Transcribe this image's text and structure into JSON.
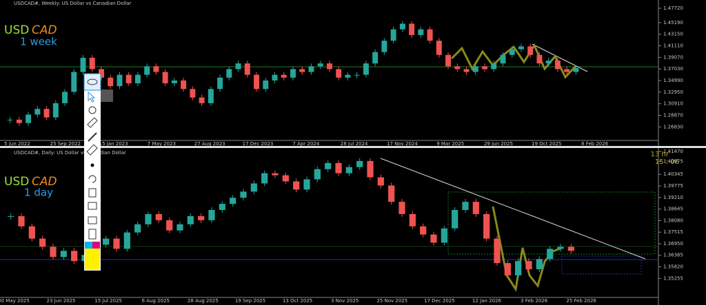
{
  "chart_data": [
    {
      "type": "candlestick",
      "title": "USDCAD#, Weekly: US Dollar vs Canadian Dollar",
      "symbol_a": "USD",
      "symbol_b": "CAD",
      "period": "1 week",
      "up_color": "#26a69a",
      "down_color": "#ef5350",
      "values": [
        1.281,
        1.275,
        1.29,
        1.3,
        1.285,
        1.31,
        1.33,
        1.365,
        1.39,
        1.37,
        1.355,
        1.34,
        1.36,
        1.345,
        1.36,
        1.375,
        1.365,
        1.345,
        1.35,
        1.335,
        1.32,
        1.31,
        1.335,
        1.355,
        1.37,
        1.38,
        1.36,
        1.335,
        1.35,
        1.36,
        1.355,
        1.37,
        1.365,
        1.375,
        1.38,
        1.37,
        1.355,
        1.36,
        1.36,
        1.38,
        1.4,
        1.42,
        1.44,
        1.45,
        1.43,
        1.44,
        1.42,
        1.395,
        1.375,
        1.37,
        1.365,
        1.375,
        1.37,
        1.38,
        1.395,
        1.405,
        1.41,
        1.395,
        1.38,
        1.385,
        1.37,
        1.365,
        1.372
      ],
      "ylim": [
        1.2444,
        1.482
      ],
      "yticks": [
        {
          "value": 1.4772,
          "label": "1.47720"
        },
        {
          "value": 1.4519,
          "label": "1.45190"
        },
        {
          "value": 1.4315,
          "label": "1.43150"
        },
        {
          "value": 1.4111,
          "label": "1.41110"
        },
        {
          "value": 1.3907,
          "label": "1.39070"
        },
        {
          "value": 1.3703,
          "label": "1.37030"
        },
        {
          "value": 1.3499,
          "label": "1.34990"
        },
        {
          "value": 1.3295,
          "label": "1.32950"
        },
        {
          "value": 1.3091,
          "label": "1.30910"
        },
        {
          "value": 1.2887,
          "label": "1.28870"
        },
        {
          "value": 1.2683,
          "label": "1.26830"
        }
      ],
      "x_labels": [
        "5 Jun 2022",
        "25 Sep 2022",
        "15 Jan 2023",
        "7 May 2023",
        "27 Aug 2023",
        "17 Dec 2023",
        "7 Apr 2024",
        "28 Jul 2024",
        "17 Nov 2024",
        "9 Mar 2025",
        "29 Jun 2025",
        "19 Oct 2025",
        "8 Feb 2026"
      ]
    },
    {
      "type": "candlestick",
      "title": "USDCAD#, Daily: US Dollar vs Canadian Dollar",
      "symbol_a": "USD",
      "symbol_b": "CAD",
      "period": "1 day",
      "timer_hours": "13 hr",
      "timer_clock": "15 : 06",
      "up_color": "#26a69a",
      "down_color": "#ef5350",
      "values": [
        1.383,
        1.378,
        1.372,
        1.368,
        1.363,
        1.366,
        1.361,
        1.364,
        1.369,
        1.372,
        1.367,
        1.375,
        1.379,
        1.384,
        1.381,
        1.376,
        1.379,
        1.383,
        1.381,
        1.386,
        1.389,
        1.392,
        1.395,
        1.399,
        1.404,
        1.403,
        1.4,
        1.396,
        1.401,
        1.406,
        1.409,
        1.404,
        1.407,
        1.41,
        1.402,
        1.398,
        1.39,
        1.384,
        1.378,
        1.374,
        1.37,
        1.377,
        1.386,
        1.39,
        1.384,
        1.372,
        1.36,
        1.354,
        1.361,
        1.357,
        1.362,
        1.367,
        1.368,
        1.366
      ],
      "ylim": [
        1.3432,
        1.416
      ],
      "yticks": [
        {
          "value": 1.4147,
          "label": "1.41470"
        },
        {
          "value": 1.40975,
          "label": "1.40975"
        },
        {
          "value": 1.40345,
          "label": "1.40345"
        },
        {
          "value": 1.39775,
          "label": "1.39775"
        },
        {
          "value": 1.3921,
          "label": "1.39210"
        },
        {
          "value": 1.38645,
          "label": "1.38645"
        },
        {
          "value": 1.3808,
          "label": "1.38080"
        },
        {
          "value": 1.37515,
          "label": "1.37515"
        },
        {
          "value": 1.3695,
          "label": "1.36950"
        },
        {
          "value": 1.36385,
          "label": "1.36385"
        },
        {
          "value": 1.3582,
          "label": "1.35820"
        },
        {
          "value": 1.35255,
          "label": "1.35255"
        }
      ],
      "x_labels": [
        "30 May 2025",
        "23 Jun 2025",
        "15 Jul 2025",
        "6 Aug 2025",
        "28 Aug 2025",
        "19 Sep 2025",
        "13 Oct 2025",
        "3 Nov 2025",
        "25 Nov 2025",
        "17 Dec 2025",
        "12 Jan 2026",
        "3 Feb 2026",
        "25 Feb 2026"
      ]
    }
  ]
}
